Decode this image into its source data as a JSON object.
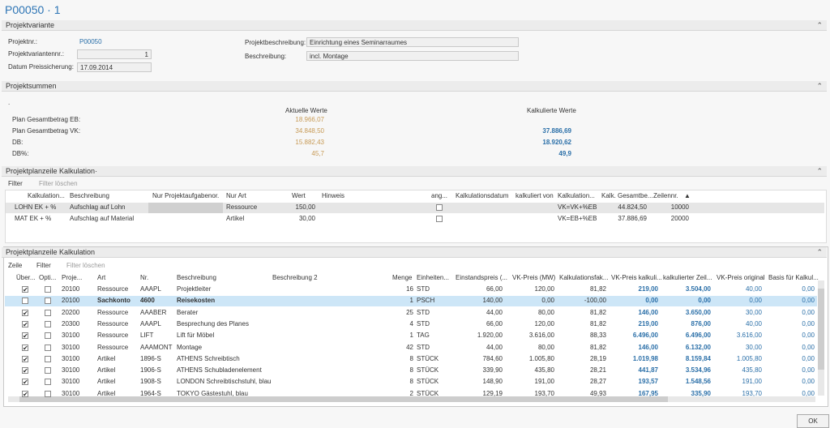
{
  "title": "P00050 · 1",
  "projektvariante": {
    "header": "Projektvariante",
    "fields": [
      {
        "label": "Projektnr.:",
        "value": "P00050"
      },
      {
        "label": "Projektvariantennr.:",
        "value": "1"
      },
      {
        "label": "Datum Preissicherung:",
        "value": "17.09.2014"
      },
      {
        "label": "Projektbeschreibung:",
        "value": "Einrichtung eines Seminarraumes"
      },
      {
        "label": "Beschreibung:",
        "value": "incl. Montage"
      }
    ]
  },
  "projektsummen": {
    "header": "Projektsummen",
    "marker": ".",
    "columns": [
      "Aktuelle Werte",
      "Kalkulierte Werte"
    ],
    "rows": [
      {
        "label": "Plan Gesamtbetrag EB:",
        "aktuell": "18.966,07"
      },
      {
        "label": "Plan Gesamtbetrag VK:",
        "aktuell": "34.848,50",
        "kalkuliert": "37.886,69"
      },
      {
        "label": "DB:",
        "aktuell": "15.882,43",
        "kalkuliert": "18.920,62"
      },
      {
        "label": "DB%:",
        "aktuell": "45,7",
        "kalkuliert": "49,9"
      }
    ]
  },
  "kalkulation": {
    "header": "Projektplanzeile Kalkulation·",
    "toolbar": [
      "Filter",
      "Filter löschen"
    ],
    "columns": [
      "Kalkulation...",
      "Beschreibung",
      "Nur Projektaufgabenor.",
      "Nur Art",
      "Wert",
      "Hinweis",
      "ang...",
      "Kalkulationsdatum",
      "kalkuliert von",
      "Kalkulation...",
      "Kalk. Gesamtbe...",
      "Zeilennr."
    ],
    "rows": [
      {
        "kalkulation": "LOHN EK + %",
        "beschreibung": "Aufschlag auf Lohn",
        "art": "Ressource",
        "wert": "150,00",
        "angebot": false,
        "formel": "VK=VK+%EB",
        "gesamtbetrag": "44.824,50",
        "zeilennr": "10000"
      },
      {
        "kalkulation": "MAT EK + %",
        "beschreibung": "Aufschlag auf Material",
        "art": "Artikel",
        "wert": "30,00",
        "angebot": false,
        "formel": "VK=EB+%EB",
        "gesamtbetrag": "37.886,69",
        "zeilennr": "20000"
      }
    ]
  },
  "planzeilen": {
    "header": "Projektplanzeile Kalkulation",
    "toolbar": [
      "Zeile",
      "Filter",
      "Filter löschen"
    ],
    "columns": [
      "Über...",
      "Opti...",
      "Proje...",
      "Art",
      "Nr.",
      "Beschreibung",
      "Beschreibung 2",
      "Menge",
      "Einheiten...",
      "Einstandspreis (...",
      "VK-Preis (MW)",
      "Kalkulationsfak...",
      "VK-Preis kalkuli...",
      "kalkulierter Zeil...",
      "VK-Preis original",
      "Basis für Kalkul..."
    ],
    "selected_row": 1,
    "rows": [
      {
        "ueber": true,
        "option": false,
        "cells": [
          "20100",
          "Ressource",
          "AAAPL",
          "Projektleiter",
          "16",
          "STD",
          "66,00",
          "120,00",
          "81,82",
          "219,00",
          "3.504,00",
          "40,00",
          "0,00"
        ]
      },
      {
        "ueber": false,
        "option": false,
        "cells": [
          "20100",
          "Sachkonto",
          "4600",
          "Reisekosten",
          "1",
          "PSCH",
          "140,00",
          "0,00",
          "-100,00",
          "0,00",
          "0,00",
          "0,00",
          "0,00"
        ]
      },
      {
        "ueber": true,
        "option": false,
        "cells": [
          "20200",
          "Ressource",
          "AAABER",
          "Berater",
          "25",
          "STD",
          "44,00",
          "80,00",
          "81,82",
          "146,00",
          "3.650,00",
          "30,00",
          "0,00"
        ]
      },
      {
        "ueber": true,
        "option": false,
        "cells": [
          "20300",
          "Ressource",
          "AAAPL",
          "Besprechung des Planes",
          "4",
          "STD",
          "66,00",
          "120,00",
          "81,82",
          "219,00",
          "876,00",
          "40,00",
          "0,00"
        ]
      },
      {
        "ueber": true,
        "option": false,
        "cells": [
          "30100",
          "Ressource",
          "LIFT",
          "Lift für Möbel",
          "1",
          "TAG",
          "1.920,00",
          "3.616,00",
          "88,33",
          "6.496,00",
          "6.496,00",
          "3.616,00",
          "0,00"
        ]
      },
      {
        "ueber": true,
        "option": false,
        "cells": [
          "30100",
          "Ressource",
          "AAAMONT",
          "Montage",
          "42",
          "STD",
          "44,00",
          "80,00",
          "81,82",
          "146,00",
          "6.132,00",
          "30,00",
          "0,00"
        ]
      },
      {
        "ueber": true,
        "option": false,
        "cells": [
          "30100",
          "Artikel",
          "1896-S",
          "ATHENS Schreibtisch",
          "8",
          "STÜCK",
          "784,60",
          "1.005,80",
          "28,19",
          "1.019,98",
          "8.159,84",
          "1.005,80",
          "0,00"
        ]
      },
      {
        "ueber": true,
        "option": false,
        "cells": [
          "30100",
          "Artikel",
          "1906-S",
          "ATHENS Schubladenelement",
          "8",
          "STÜCK",
          "339,90",
          "435,80",
          "28,21",
          "441,87",
          "3.534,96",
          "435,80",
          "0,00"
        ]
      },
      {
        "ueber": true,
        "option": false,
        "cells": [
          "30100",
          "Artikel",
          "1908-S",
          "LONDON Schreibtischstuhl, blau",
          "8",
          "STÜCK",
          "148,90",
          "191,00",
          "28,27",
          "193,57",
          "1.548,56",
          "191,00",
          "0,00"
        ]
      },
      {
        "ueber": true,
        "option": false,
        "cells": [
          "30100",
          "Artikel",
          "1964-S",
          "TOKYO Gästestuhl, blau",
          "2",
          "STÜCK",
          "129,19",
          "193,70",
          "49,93",
          "167,95",
          "335,90",
          "193,70",
          "0,00"
        ]
      }
    ]
  },
  "ok": "OK"
}
